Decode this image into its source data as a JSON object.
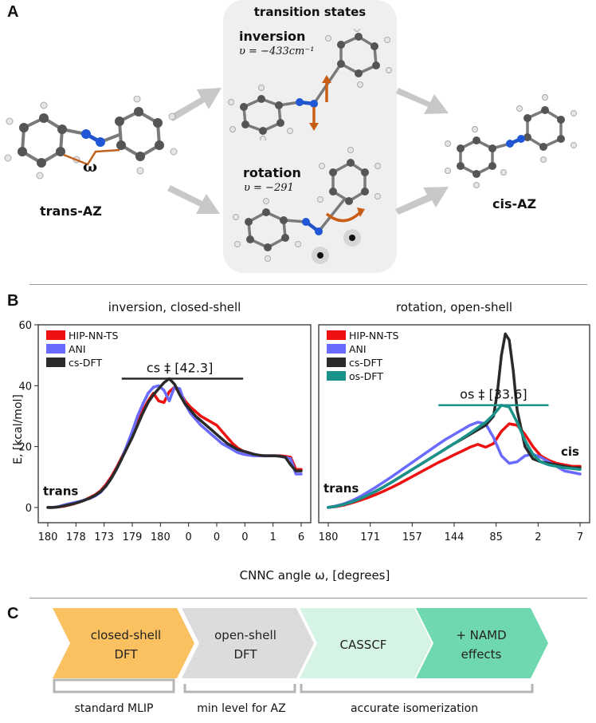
{
  "panelA": {
    "letter": "A",
    "ts_title": "transition states",
    "trans_label": "trans-AZ",
    "cis_label": "cis-AZ",
    "omega": "ω",
    "inversion": {
      "name": "inversion",
      "freq": "υ = −433cm⁻¹"
    },
    "rotation": {
      "name": "rotation",
      "freq": "υ = −291"
    }
  },
  "panelB": {
    "letter": "B",
    "x_axis_label": "CNNC angle ω, [degrees]",
    "y_axis_label": "E, [kcal/mol]"
  },
  "chart_data": [
    {
      "type": "line",
      "title": "inversion, closed-shell",
      "ylabel": "E, [kcal/mol]",
      "xlabel": "CNNC angle ω, [degrees]",
      "ylim": [
        -5,
        60
      ],
      "yticks": [
        0,
        20,
        40,
        60
      ],
      "xtick_labels": [
        "180",
        "178",
        "173",
        "179",
        "180",
        "0",
        "0",
        "0",
        "1",
        "6"
      ],
      "legend": [
        "HIP-NN-TS",
        "ANI",
        "cs-DFT"
      ],
      "annotations": {
        "barrier": "cs ‡ [42.3]",
        "trans": "trans"
      },
      "series": [
        {
          "name": "HIP-NN-TS",
          "color": "#ee1111",
          "x": [
            0,
            1,
            2,
            3,
            4,
            5,
            6,
            7,
            8,
            9,
            10,
            11,
            12,
            13,
            14,
            15,
            16,
            17,
            18,
            19,
            20,
            21,
            22,
            23,
            24,
            25,
            26,
            27,
            28,
            29,
            30,
            31,
            32,
            33,
            34,
            35,
            36,
            37,
            38,
            39,
            40,
            41,
            42,
            43,
            44,
            45,
            46,
            47,
            48
          ],
          "y": [
            0,
            0,
            0.2,
            0.4,
            0.8,
            1.2,
            1.8,
            2.5,
            3.3,
            4.2,
            5.5,
            7.5,
            10,
            13,
            16.5,
            20,
            24,
            28,
            32,
            35,
            37.5,
            35,
            34.5,
            38,
            39.5,
            38,
            35,
            33,
            31.5,
            30,
            29,
            28,
            27,
            25,
            23,
            21,
            19.5,
            18.5,
            18,
            17.5,
            17,
            17,
            17,
            17,
            17,
            16.8,
            16.5,
            12.5,
            12.5
          ]
        },
        {
          "name": "ANI",
          "color": "#6a6aff",
          "x": [
            0,
            1,
            2,
            3,
            4,
            5,
            6,
            7,
            8,
            9,
            10,
            11,
            12,
            13,
            14,
            15,
            16,
            17,
            18,
            19,
            20,
            21,
            22,
            23,
            24,
            25,
            26,
            27,
            28,
            29,
            30,
            31,
            32,
            33,
            34,
            35,
            36,
            37,
            38,
            39,
            40,
            41,
            42,
            43,
            44,
            45,
            46,
            47,
            48
          ],
          "y": [
            0,
            0,
            0.3,
            0.8,
            1.2,
            1.6,
            2,
            2.5,
            3,
            3.8,
            5,
            7,
            9.5,
            12.5,
            16,
            20.5,
            25,
            30,
            34,
            37.5,
            39.5,
            40,
            38.5,
            35,
            39.5,
            39,
            34,
            31,
            29,
            27,
            25.5,
            24,
            22.5,
            21,
            20,
            19,
            18,
            17.5,
            17.2,
            17,
            17,
            17,
            17,
            17,
            16.8,
            16.5,
            16,
            11,
            11
          ]
        },
        {
          "name": "cs-DFT",
          "color": "#2a2a2a",
          "x": [
            0,
            1,
            2,
            3,
            4,
            5,
            6,
            7,
            8,
            9,
            10,
            11,
            12,
            13,
            14,
            15,
            16,
            17,
            18,
            19,
            20,
            21,
            22,
            23,
            24,
            25,
            26,
            27,
            28,
            29,
            30,
            31,
            32,
            33,
            34,
            35,
            36,
            37,
            38,
            39,
            40,
            41,
            42,
            43,
            44,
            45,
            46,
            47,
            48
          ],
          "y": [
            0,
            0,
            0.2,
            0.5,
            0.9,
            1.3,
            1.8,
            2.4,
            3.1,
            4,
            5.2,
            7,
            9.5,
            12.5,
            16,
            19.5,
            23,
            27,
            31,
            34.5,
            37,
            39,
            41,
            42.3,
            40.5,
            37,
            34,
            32,
            30,
            28.5,
            27,
            25.5,
            24,
            22.5,
            21,
            20,
            19,
            18.5,
            18,
            17.5,
            17.2,
            17,
            17,
            17,
            16.8,
            16.5,
            14,
            12,
            12
          ]
        }
      ]
    },
    {
      "type": "line",
      "title": "rotation, open-shell",
      "ylim": [
        -5,
        60
      ],
      "xtick_labels": [
        "180",
        "171",
        "157",
        "144",
        "85",
        "2",
        "7"
      ],
      "legend": [
        "HIP-NN-TS",
        "ANI",
        "cs-DFT",
        "os-DFT"
      ],
      "annotations": {
        "barrier": "os ‡ [33.6]",
        "trans": "trans",
        "cis": "cis"
      },
      "series": [
        {
          "name": "HIP-NN-TS",
          "color": "#ee1111",
          "x": [
            0,
            2,
            4,
            6,
            8,
            10,
            12,
            14,
            16,
            18,
            20,
            22,
            24,
            26,
            28,
            30,
            32,
            34,
            36,
            38,
            40,
            42,
            44,
            46,
            48,
            50,
            52,
            54,
            56,
            58,
            60,
            62,
            64
          ],
          "y": [
            0,
            0.3,
            0.8,
            1.5,
            2.3,
            3.2,
            4.2,
            5.3,
            6.5,
            7.8,
            9.2,
            10.6,
            12,
            13.4,
            14.8,
            16,
            17.3,
            18.5,
            19.8,
            20.7,
            19.8,
            21,
            25,
            27.5,
            27,
            24,
            20,
            17,
            15.5,
            14.5,
            14,
            13.5,
            13.5
          ]
        },
        {
          "name": "ANI",
          "color": "#6a6aff",
          "x": [
            0,
            2,
            4,
            6,
            8,
            10,
            12,
            14,
            16,
            18,
            20,
            22,
            24,
            26,
            28,
            30,
            32,
            34,
            36,
            38,
            40,
            42,
            44,
            46,
            48,
            50,
            52,
            54,
            56,
            58,
            60,
            62,
            64
          ],
          "y": [
            0,
            0.5,
            1.2,
            2.2,
            3.5,
            5,
            6.6,
            8.3,
            10,
            11.8,
            13.6,
            15.4,
            17.2,
            19,
            20.8,
            22.5,
            24,
            25.5,
            27,
            28,
            27.5,
            23,
            17,
            14.5,
            15,
            17,
            17.5,
            16.5,
            15,
            13.5,
            12,
            11.5,
            11
          ]
        },
        {
          "name": "cs-DFT",
          "color": "#2a2a2a",
          "x": [
            0,
            2,
            4,
            6,
            8,
            10,
            12,
            14,
            16,
            18,
            20,
            22,
            24,
            26,
            28,
            30,
            32,
            34,
            36,
            38,
            40,
            42,
            43,
            44,
            45,
            46,
            47,
            48,
            50,
            52,
            54,
            56,
            58,
            60,
            62,
            64
          ],
          "y": [
            0,
            0.4,
            1,
            1.8,
            2.8,
            4,
            5.3,
            6.7,
            8.2,
            9.8,
            11.4,
            13,
            14.6,
            16.2,
            17.8,
            19.4,
            21,
            22.5,
            24,
            25.5,
            27,
            30,
            38,
            50,
            57,
            55,
            45,
            32,
            20,
            16,
            15,
            14.5,
            14,
            13.5,
            13,
            13
          ]
        },
        {
          "name": "os-DFT",
          "color": "#19938a",
          "x": [
            0,
            2,
            4,
            6,
            8,
            10,
            12,
            14,
            16,
            18,
            20,
            22,
            24,
            26,
            28,
            30,
            32,
            34,
            36,
            38,
            40,
            42,
            44,
            46,
            48,
            50,
            52,
            54,
            56,
            58,
            60,
            62,
            64
          ],
          "y": [
            0,
            0.4,
            1,
            1.8,
            2.8,
            4,
            5.3,
            6.7,
            8.2,
            9.8,
            11.4,
            13,
            14.6,
            16.2,
            17.8,
            19.4,
            21,
            22.7,
            24.4,
            26.2,
            28,
            30.5,
            33.6,
            33,
            28,
            22,
            17.5,
            15,
            14,
            13.5,
            13,
            12.8,
            12.5
          ]
        }
      ]
    }
  ],
  "panelC": {
    "letter": "C",
    "chevrons": [
      {
        "line1": "closed-shell",
        "line2": "DFT",
        "color": "#fbc160"
      },
      {
        "line1": "open-shell",
        "line2": "DFT",
        "color": "#dcdcdc"
      },
      {
        "line1": "CASSCF",
        "line2": "",
        "color": "#d6f4e6"
      },
      {
        "line1": "+ NAMD",
        "line2": "effects",
        "color": "#6fd8b0"
      }
    ],
    "brackets": [
      "standard MLIP",
      "min level for AZ",
      "accurate isomerization"
    ]
  }
}
